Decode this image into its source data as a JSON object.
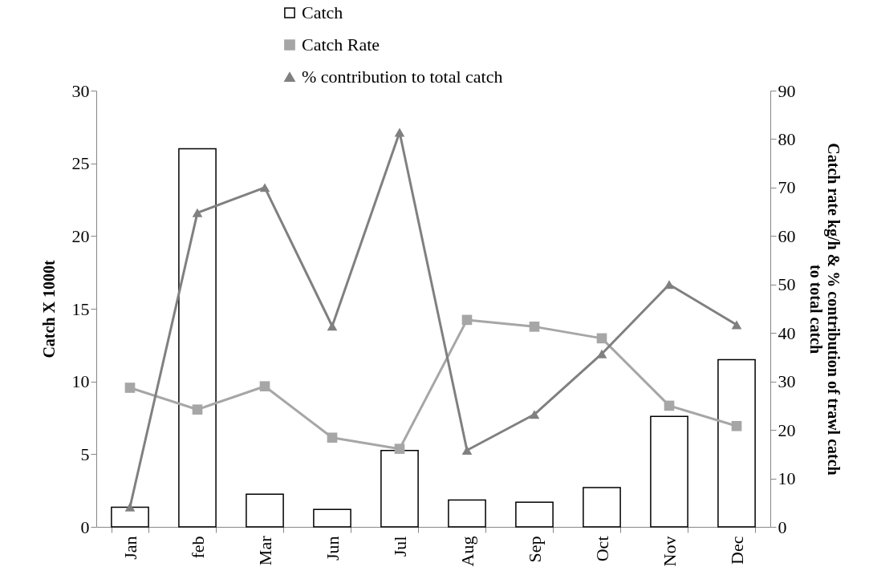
{
  "chart_data": {
    "type": "bar",
    "categories": [
      "Jan",
      "feb",
      "Mar",
      "Jun",
      "Jul",
      "Aug",
      "Sep",
      "Oct",
      "Nov",
      "Dec"
    ],
    "series": [
      {
        "name": "Catch",
        "color": "#ffffff",
        "values": [
          1.35,
          26.0,
          2.25,
          1.2,
          5.25,
          1.85,
          1.7,
          2.7,
          7.6,
          11.5
        ]
      },
      {
        "name": "Catch Rate",
        "type": "line",
        "axis": "y2",
        "marker": "square",
        "color": "#a6a6a6",
        "values": [
          28.7,
          24.2,
          29.0,
          18.4,
          16.1,
          42.7,
          41.3,
          38.9,
          25.0,
          20.8
        ]
      },
      {
        "name": "% contribution to total catch",
        "type": "line",
        "axis": "y2",
        "marker": "triangle",
        "color": "#808080",
        "values": [
          4.1,
          64.8,
          70.0,
          41.4,
          81.4,
          15.8,
          23.2,
          35.7,
          50.0,
          41.7
        ]
      }
    ],
    "ylabel": "Catch X 1000t",
    "y2label": "Catch rate kg/h & % contribution of trawl catch to total catch",
    "ylim": [
      0,
      30
    ],
    "yticks": [
      0,
      5,
      10,
      15,
      20,
      25,
      30
    ],
    "y2lim": [
      0,
      90
    ],
    "y2ticks": [
      0,
      10,
      20,
      30,
      40,
      50,
      60,
      70,
      80,
      90
    ],
    "grid": false,
    "legend": "top"
  }
}
